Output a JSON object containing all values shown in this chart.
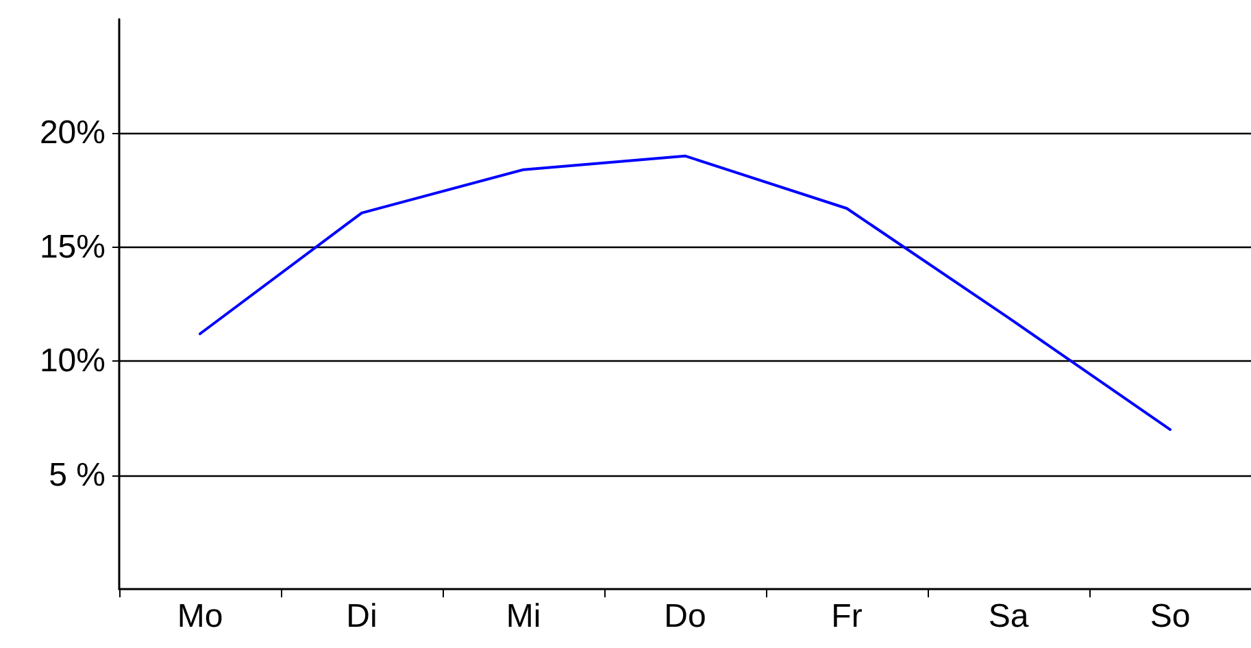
{
  "chart_data": {
    "type": "line",
    "categories": [
      "Mo",
      "Di",
      "Mi",
      "Do",
      "Fr",
      "Sa",
      "So"
    ],
    "series": [
      {
        "color": "#0000ff",
        "values": [
          11.2,
          16.5,
          18.4,
          19.0,
          16.7,
          11.9,
          7.0
        ]
      }
    ],
    "ylim": [
      0,
      25
    ],
    "yticks": [
      {
        "value": 5,
        "label": "5 %"
      },
      {
        "value": 10,
        "label": "10%"
      },
      {
        "value": 15,
        "label": "15%"
      },
      {
        "value": 20,
        "label": "20%"
      }
    ],
    "grid": "y",
    "marker": "none",
    "line_style": "solid"
  }
}
